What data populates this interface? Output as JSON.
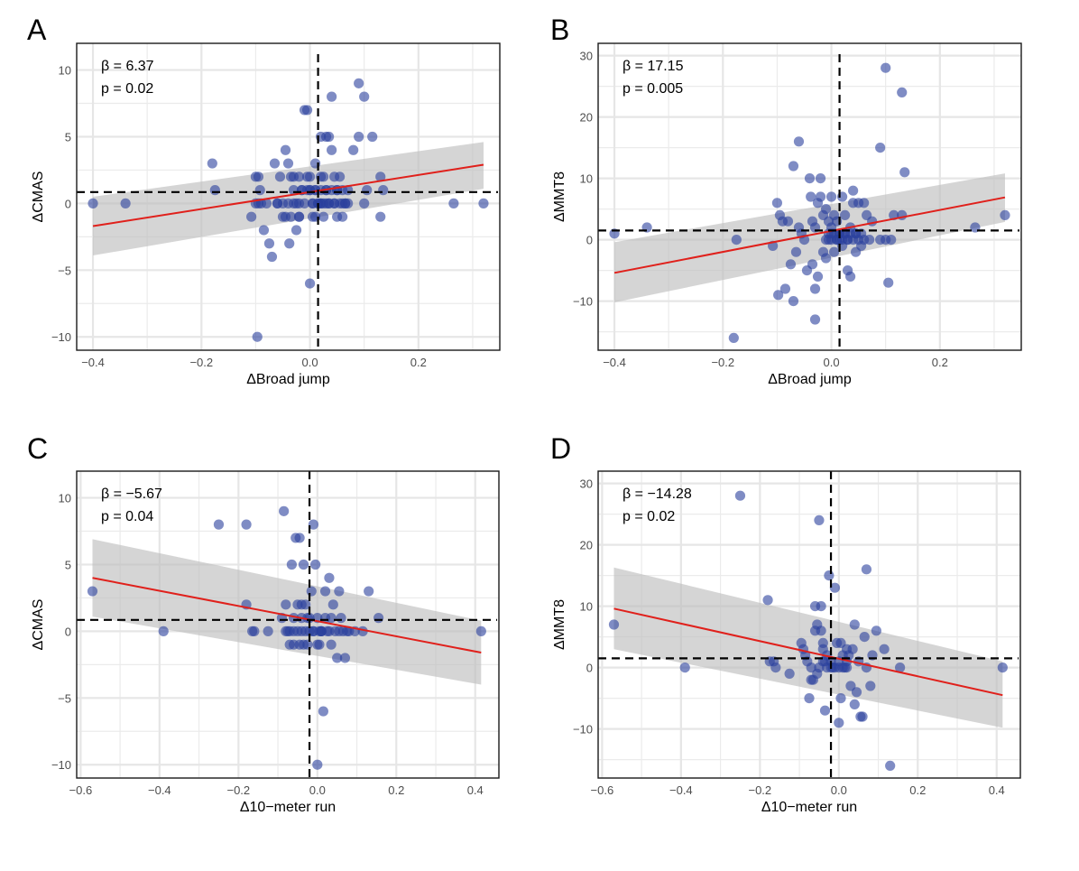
{
  "chart_data": [
    {
      "type": "scatter",
      "panel": "A",
      "xlabel": "ΔBroad jump",
      "ylabel": "ΔCMAS",
      "xlim": [
        -0.43,
        0.35
      ],
      "ylim": [
        -11,
        12
      ],
      "xticks": [
        -0.4,
        -0.2,
        0.0,
        0.2
      ],
      "xtick_labels": [
        "−0.4",
        "−0.2",
        "0.0",
        "0.2"
      ],
      "yticks": [
        -10,
        -5,
        0,
        5,
        10
      ],
      "ytick_labels": [
        "−10",
        "−5",
        "0",
        "5",
        "10"
      ],
      "x_minor": [
        -0.3,
        -0.1,
        0.1,
        0.3
      ],
      "y_minor": [
        -7.5,
        -2.5,
        2.5,
        7.5
      ],
      "grid": true,
      "annotations": [
        "β = 6.37",
        "p = 0.02"
      ],
      "vline_x": 0.015,
      "hline_y": 0.85,
      "fit": {
        "x": [
          -0.4,
          0.32
        ],
        "y": [
          -1.7,
          2.9
        ]
      },
      "ci": {
        "x": [
          -0.4,
          0.32
        ],
        "lower": [
          -3.9,
          1.1
        ],
        "upper": [
          0.5,
          4.6
        ]
      },
      "points": {
        "x": [
          -0.4,
          -0.34,
          -0.18,
          -0.175,
          -0.108,
          -0.1,
          -0.097,
          -0.095,
          -0.092,
          -0.095,
          -0.09,
          -0.085,
          -0.07,
          -0.075,
          -0.065,
          -0.06,
          -0.055,
          -0.05,
          -0.045,
          -0.04,
          -0.038,
          -0.035,
          -0.035,
          -0.03,
          -0.03,
          -0.025,
          -0.02,
          -0.02,
          -0.015,
          -0.01,
          -0.01,
          -0.005,
          -0.005,
          0.0,
          0.0,
          0.005,
          0.005,
          0.01,
          0.01,
          0.015,
          0.02,
          0.02,
          0.025,
          0.025,
          0.03,
          0.03,
          0.035,
          0.035,
          0.04,
          0.04,
          0.045,
          0.045,
          0.05,
          0.05,
          0.055,
          0.06,
          0.06,
          0.065,
          0.07,
          0.08,
          0.09,
          0.09,
          0.1,
          0.1,
          0.105,
          0.115,
          0.13,
          0.13,
          0.135,
          0.265,
          0.32,
          -0.1,
          -0.08,
          -0.06,
          -0.05,
          -0.04,
          -0.025,
          0.005,
          0.015,
          0.025,
          0.035,
          0.045,
          0.055,
          0.065,
          -0.03,
          -0.015,
          -0.005,
          0.0,
          0.01,
          0.02,
          0.03,
          0.04,
          0.05,
          0.06,
          0.07,
          -0.045,
          -0.02,
          0.01,
          0.02,
          0.03,
          -0.02,
          0.0,
          0.02
        ],
        "y": [
          0,
          0,
          3,
          1,
          -1,
          2,
          -10,
          2,
          1,
          0,
          0,
          -2,
          -4,
          -3,
          3,
          0,
          2,
          -1,
          4,
          3,
          -3,
          2,
          -1,
          0,
          2,
          -2,
          -1,
          0,
          1,
          7,
          0,
          7,
          2,
          -6,
          1,
          0,
          -1,
          3,
          1,
          0,
          5,
          0,
          -1,
          2,
          5,
          1,
          0,
          5,
          4,
          8,
          2,
          0,
          -1,
          1,
          2,
          0,
          -1,
          0,
          0,
          4,
          9,
          5,
          8,
          0,
          1,
          5,
          -1,
          2,
          1,
          0,
          0,
          0,
          0,
          0,
          0,
          0,
          0,
          0,
          0,
          0,
          0,
          0,
          0,
          0,
          1,
          1,
          1,
          1,
          1,
          1,
          1,
          1,
          1,
          1,
          1,
          -1,
          -1,
          -1,
          0,
          0,
          2,
          2,
          2
        ]
      }
    },
    {
      "type": "scatter",
      "panel": "B",
      "xlabel": "ΔBroad jump",
      "ylabel": "ΔMMT8",
      "xlim": [
        -0.43,
        0.35
      ],
      "ylim": [
        -18,
        32
      ],
      "xticks": [
        -0.4,
        -0.2,
        0.0,
        0.2
      ],
      "xtick_labels": [
        "−0.4",
        "−0.2",
        "0.0",
        "0.2"
      ],
      "yticks": [
        -10,
        0,
        10,
        20,
        30
      ],
      "ytick_labels": [
        "−10",
        "0",
        "10",
        "20",
        "30"
      ],
      "x_minor": [
        -0.3,
        -0.1,
        0.1,
        0.3
      ],
      "y_minor": [
        -15,
        -5,
        5,
        15,
        25
      ],
      "grid": true,
      "annotations": [
        "β = 17.15",
        "p = 0.005"
      ],
      "vline_x": 0.015,
      "hline_y": 1.5,
      "fit": {
        "x": [
          -0.4,
          0.32
        ],
        "y": [
          -5.4,
          6.9
        ]
      },
      "ci": {
        "x": [
          -0.4,
          0.32
        ],
        "lower": [
          -10.2,
          2.9
        ],
        "upper": [
          -0.4,
          10.8
        ]
      },
      "points": {
        "x": [
          -0.4,
          -0.34,
          -0.18,
          -0.175,
          -0.108,
          -0.1,
          -0.098,
          -0.095,
          -0.09,
          -0.085,
          -0.08,
          -0.075,
          -0.07,
          -0.07,
          -0.065,
          -0.06,
          -0.06,
          -0.055,
          -0.05,
          -0.045,
          -0.04,
          -0.038,
          -0.035,
          -0.035,
          -0.03,
          -0.03,
          -0.03,
          -0.025,
          -0.025,
          -0.02,
          -0.02,
          -0.015,
          -0.015,
          -0.01,
          -0.01,
          -0.005,
          -0.005,
          0.0,
          0.0,
          0.0,
          0.005,
          0.005,
          0.01,
          0.01,
          0.015,
          0.015,
          0.02,
          0.02,
          0.025,
          0.025,
          0.03,
          0.03,
          0.035,
          0.035,
          0.04,
          0.04,
          0.045,
          0.045,
          0.05,
          0.055,
          0.06,
          0.065,
          0.07,
          0.075,
          0.09,
          0.09,
          0.1,
          0.1,
          0.105,
          0.11,
          0.115,
          0.13,
          0.13,
          0.135,
          0.265,
          0.32,
          -0.01,
          0.0,
          0.01,
          0.02,
          0.03,
          0.04,
          0.05,
          0.06,
          -0.005,
          0.005,
          0.015,
          0.025,
          0.035,
          0.045,
          0.055
        ],
        "y": [
          1,
          2,
          -16,
          0,
          -1,
          6,
          -9,
          4,
          3,
          -8,
          3,
          -4,
          12,
          -10,
          -2,
          16,
          2,
          1,
          0,
          -5,
          10,
          7,
          -4,
          3,
          -8,
          2,
          -13,
          -6,
          6,
          10,
          7,
          -2,
          4,
          5,
          -3,
          3,
          0,
          1,
          7,
          2,
          4,
          -2,
          3,
          0,
          1,
          0,
          7,
          -1,
          4,
          1,
          -5,
          0,
          -6,
          2,
          8,
          6,
          -2,
          1,
          6,
          -1,
          6,
          4,
          0,
          3,
          15,
          0,
          28,
          0,
          -7,
          0,
          4,
          24,
          4,
          11,
          2,
          4,
          0,
          0,
          0,
          0,
          0,
          0,
          0,
          0,
          1,
          1,
          1,
          1,
          1,
          1,
          1
        ]
      }
    },
    {
      "type": "scatter",
      "panel": "C",
      "xlabel": "Δ10−meter run",
      "ylabel": "ΔCMAS",
      "xlim": [
        -0.61,
        0.46
      ],
      "ylim": [
        -11,
        12
      ],
      "xticks": [
        -0.6,
        -0.4,
        -0.2,
        0.0,
        0.2,
        0.4
      ],
      "xtick_labels": [
        "−0.6",
        "−0.4",
        "−0.2",
        "0.0",
        "0.2",
        "0.4"
      ],
      "yticks": [
        -10,
        -5,
        0,
        5,
        10
      ],
      "ytick_labels": [
        "−10",
        "−5",
        "0",
        "5",
        "10"
      ],
      "x_minor": [
        -0.5,
        -0.3,
        -0.1,
        0.1,
        0.3
      ],
      "y_minor": [
        -7.5,
        -2.5,
        2.5,
        7.5
      ],
      "grid": true,
      "annotations": [
        "β = −5.67",
        "p = 0.04"
      ],
      "vline_x": -0.02,
      "hline_y": 0.85,
      "fit": {
        "x": [
          -0.57,
          0.415
        ],
        "y": [
          4.0,
          -1.6
        ]
      },
      "ci": {
        "x": [
          -0.57,
          0.415
        ],
        "lower": [
          1.1,
          -4.0
        ],
        "upper": [
          6.9,
          0.8
        ]
      },
      "points": {
        "x": [
          -0.57,
          -0.39,
          -0.25,
          -0.18,
          -0.18,
          -0.165,
          -0.16,
          -0.125,
          -0.09,
          -0.085,
          -0.08,
          -0.08,
          -0.075,
          -0.07,
          -0.065,
          -0.06,
          -0.06,
          -0.055,
          -0.05,
          -0.045,
          -0.045,
          -0.04,
          -0.04,
          -0.035,
          -0.035,
          -0.03,
          -0.025,
          -0.025,
          -0.02,
          -0.015,
          -0.01,
          -0.01,
          -0.005,
          0.0,
          0.0,
          0.005,
          0.005,
          0.01,
          0.01,
          0.015,
          0.02,
          0.025,
          0.03,
          0.035,
          0.035,
          0.04,
          0.045,
          0.05,
          0.055,
          0.055,
          0.06,
          0.065,
          0.07,
          0.075,
          0.08,
          0.095,
          0.115,
          0.13,
          0.155,
          0.415,
          -0.07,
          -0.05,
          -0.03,
          -0.01,
          0.01,
          0.03,
          -0.06,
          -0.04,
          -0.02,
          0.0,
          0.02
        ],
        "y": [
          3,
          0,
          8,
          8,
          2,
          0,
          0,
          0,
          1,
          9,
          2,
          0,
          0,
          -1,
          5,
          0,
          -1,
          7,
          2,
          7,
          -1,
          2,
          0,
          5,
          -1,
          2,
          1,
          -1,
          0,
          3,
          8,
          0,
          5,
          -10,
          -1,
          0,
          -1,
          0,
          0,
          -6,
          3,
          0,
          4,
          -1,
          1,
          2,
          0,
          -2,
          3,
          0,
          1,
          0,
          -2,
          0,
          0,
          0,
          0,
          3,
          1,
          0,
          0,
          0,
          0,
          0,
          0,
          0,
          1,
          1,
          1,
          1,
          1
        ]
      }
    },
    {
      "type": "scatter",
      "panel": "D",
      "xlabel": "Δ10−meter run",
      "ylabel": "ΔMMT8",
      "xlim": [
        -0.61,
        0.46
      ],
      "ylim": [
        -18,
        32
      ],
      "xticks": [
        -0.6,
        -0.4,
        -0.2,
        0.0,
        0.2,
        0.4
      ],
      "xtick_labels": [
        "−0.6",
        "−0.4",
        "−0.2",
        "0.0",
        "0.2",
        "0.4"
      ],
      "yticks": [
        -10,
        0,
        10,
        20,
        30
      ],
      "ytick_labels": [
        "−10",
        "0",
        "10",
        "20",
        "30"
      ],
      "x_minor": [
        -0.5,
        -0.3,
        -0.1,
        0.1,
        0.3
      ],
      "y_minor": [
        -15,
        -5,
        5,
        15,
        25
      ],
      "grid": true,
      "annotations": [
        "β = −14.28",
        "p = 0.02"
      ],
      "vline_x": -0.02,
      "hline_y": 1.5,
      "fit": {
        "x": [
          -0.57,
          0.415
        ],
        "y": [
          9.6,
          -4.5
        ]
      },
      "ci": {
        "x": [
          -0.57,
          0.415
        ],
        "lower": [
          3.0,
          -9.8
        ],
        "upper": [
          16.3,
          1.0
        ]
      },
      "points": {
        "x": [
          -0.57,
          -0.39,
          -0.25,
          -0.18,
          -0.175,
          -0.165,
          -0.16,
          -0.125,
          -0.095,
          -0.09,
          -0.085,
          -0.08,
          -0.075,
          -0.07,
          -0.07,
          -0.065,
          -0.06,
          -0.06,
          -0.055,
          -0.055,
          -0.05,
          -0.045,
          -0.045,
          -0.04,
          -0.04,
          -0.035,
          -0.035,
          -0.03,
          -0.025,
          -0.02,
          -0.015,
          -0.01,
          -0.005,
          0.0,
          0.005,
          0.005,
          0.01,
          0.015,
          0.02,
          0.025,
          0.03,
          0.035,
          0.04,
          0.04,
          0.045,
          0.05,
          0.055,
          0.06,
          0.065,
          0.07,
          0.07,
          0.08,
          0.085,
          0.095,
          0.115,
          0.13,
          0.155,
          0.415,
          -0.05,
          -0.03,
          -0.01,
          0.0,
          0.01,
          0.02,
          -0.04,
          -0.02,
          0.0,
          0.02
        ],
        "y": [
          7,
          0,
          28,
          11,
          1,
          1,
          0,
          -1,
          4,
          3,
          2,
          1,
          -5,
          -2,
          0,
          -2,
          10,
          6,
          7,
          -1,
          24,
          10,
          6,
          4,
          3,
          -7,
          1,
          2,
          15,
          0,
          0,
          13,
          4,
          -9,
          -5,
          4,
          2,
          0,
          3,
          2,
          -3,
          3,
          7,
          -6,
          -4,
          1,
          -8,
          -8,
          5,
          16,
          0,
          -3,
          2,
          6,
          3,
          -16,
          0,
          0,
          0,
          0,
          0,
          0,
          0,
          0,
          1,
          1,
          1,
          1
        ]
      }
    }
  ]
}
